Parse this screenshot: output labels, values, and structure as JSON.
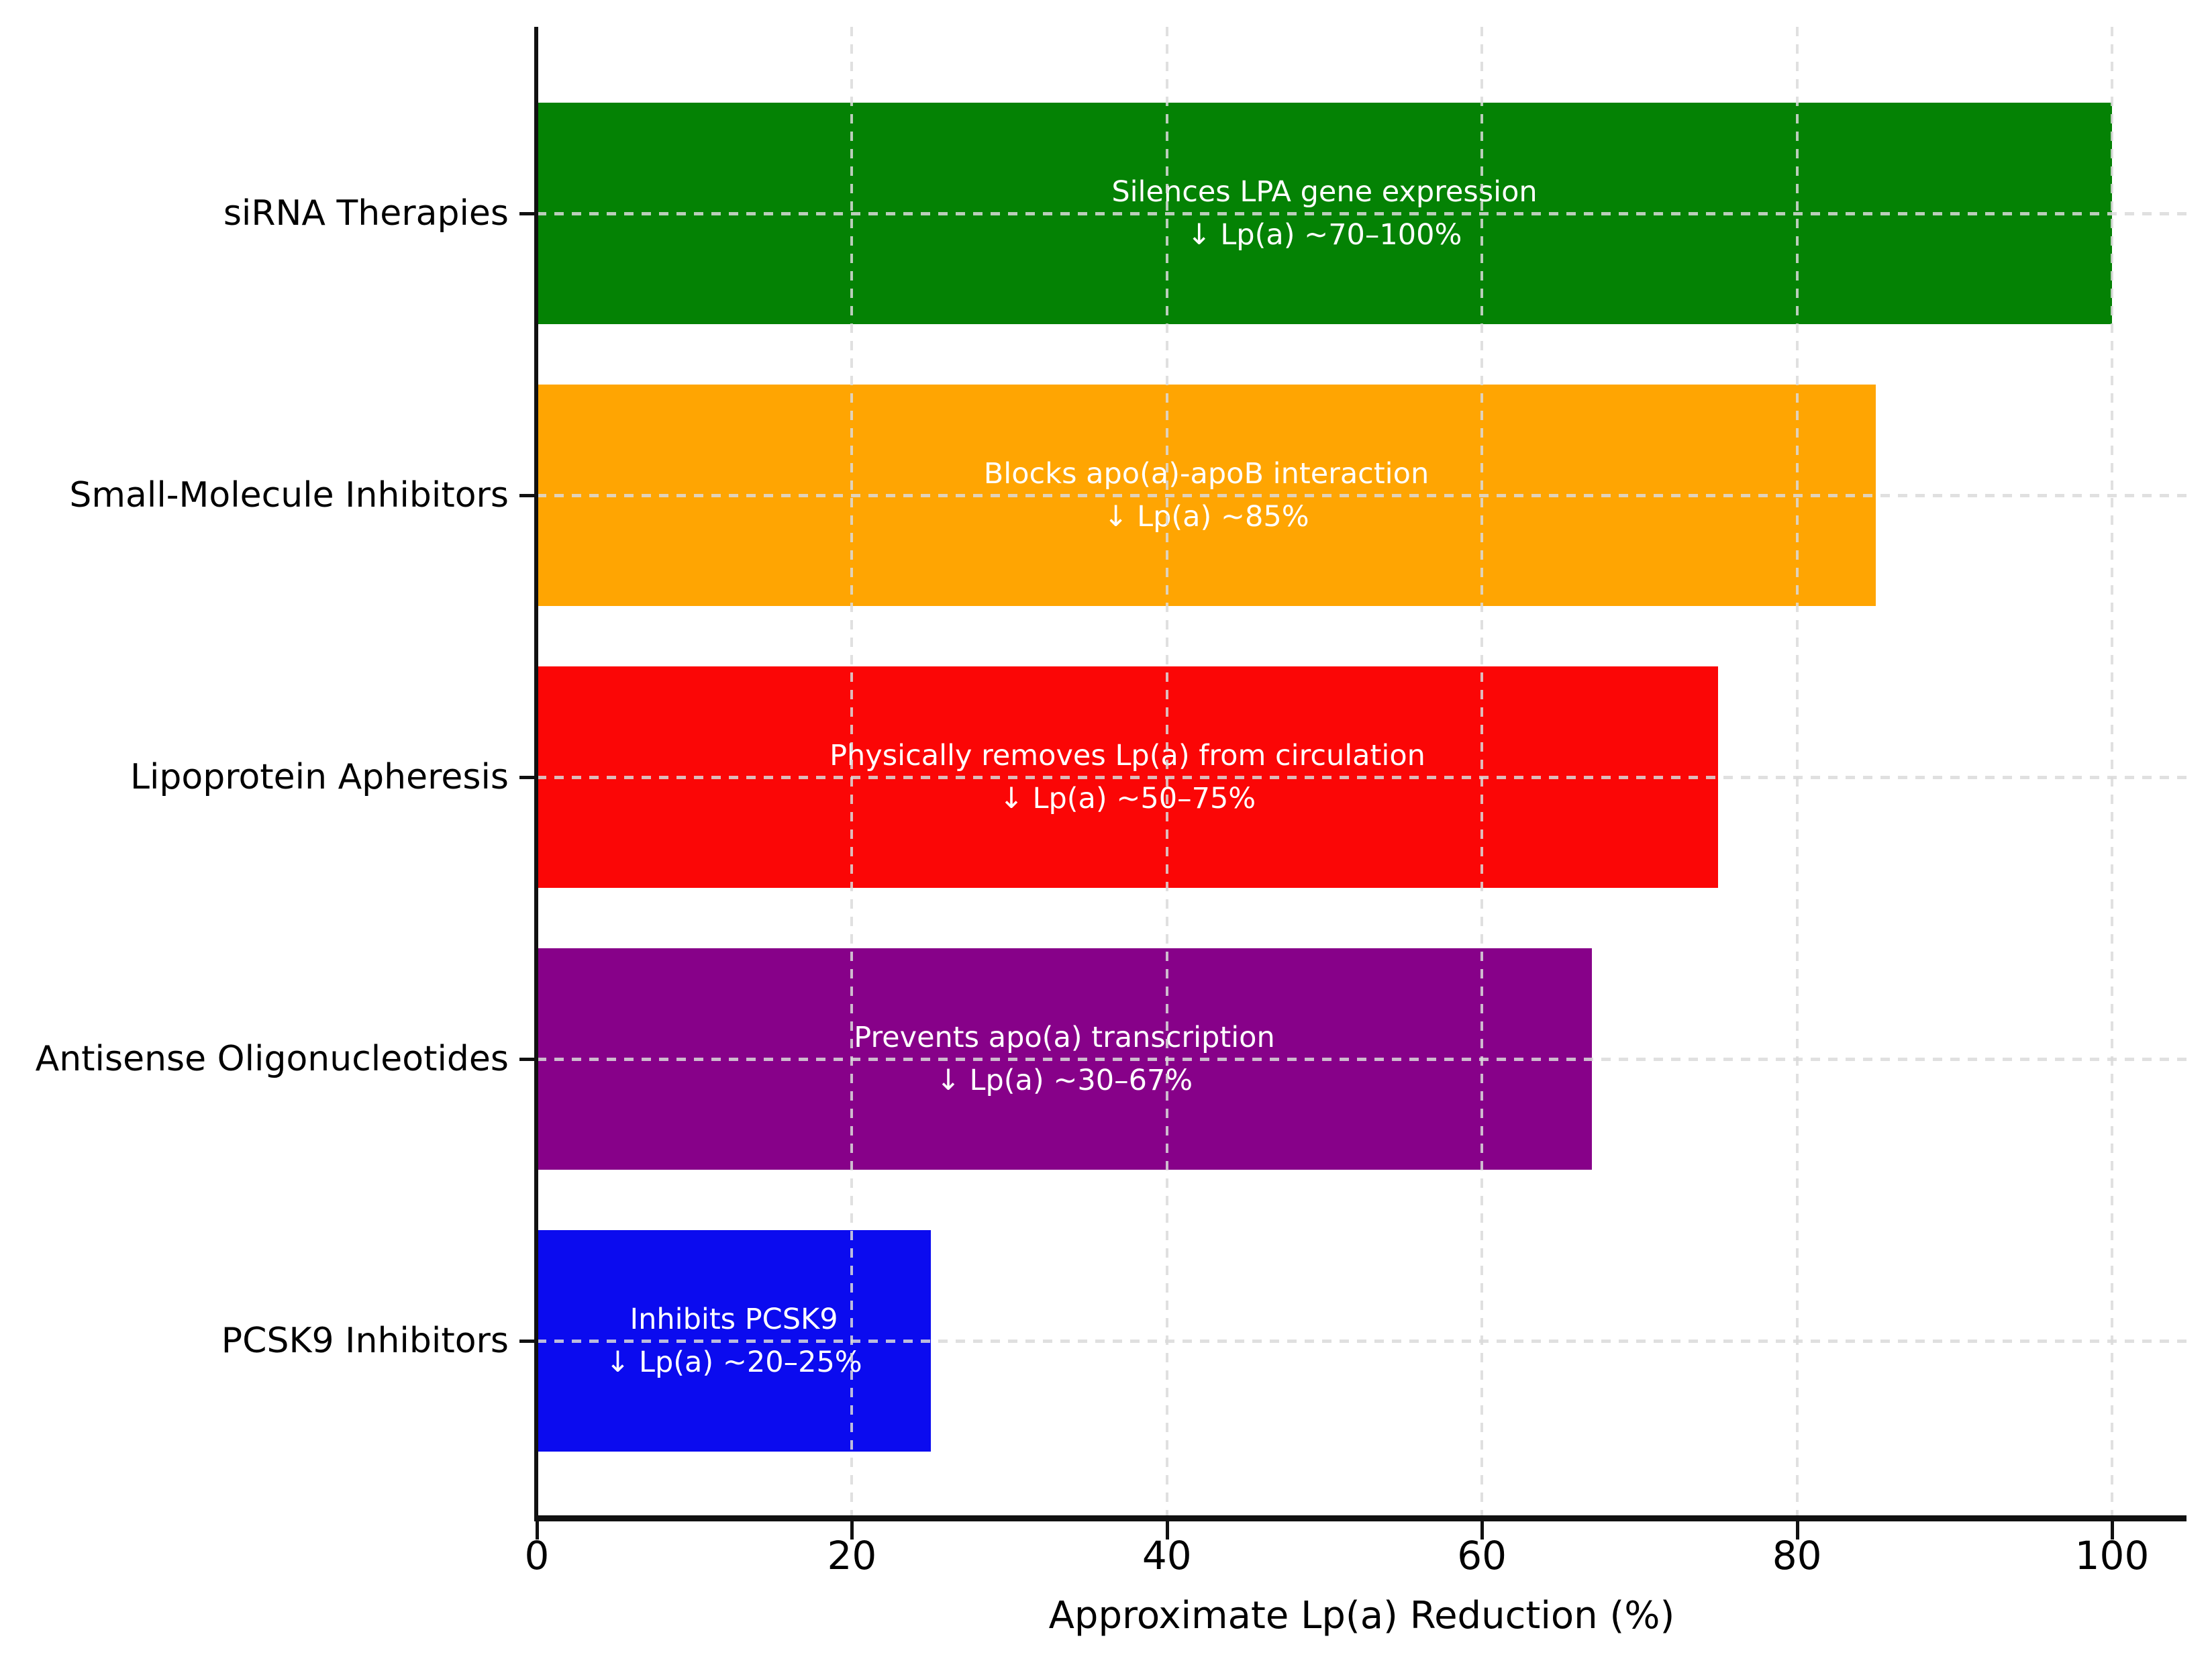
{
  "chart_data": {
    "type": "bar",
    "orientation": "horizontal",
    "xlabel": "Approximate Lp(a) Reduction (%)",
    "x_ticks": [
      0,
      20,
      40,
      60,
      80,
      100
    ],
    "xlim": [
      0,
      105
    ],
    "grid": "dashed",
    "legend_position": "none",
    "categories": [
      "siRNA Therapies",
      "Small-Molecule Inhibitors",
      "Lipoprotein Apheresis",
      "Antisense Oligonucleotides",
      "PCSK9 Inhibitors"
    ],
    "values": [
      100,
      85,
      75,
      67,
      25
    ],
    "bars": [
      {
        "category": "siRNA Therapies",
        "value": 100,
        "color": "#048204",
        "annotation_line1": "Silences LPA gene expression",
        "annotation_line2": "↓ Lp(a) ~70–100%"
      },
      {
        "category": "Small-Molecule Inhibitors",
        "value": 85,
        "color": "#FFA502",
        "annotation_line1": "Blocks apo(a)-apoB interaction",
        "annotation_line2": "↓ Lp(a) ~85%"
      },
      {
        "category": "Lipoprotein Apheresis",
        "value": 75,
        "color": "#FB0606",
        "annotation_line1": "Physically removes Lp(a) from circulation",
        "annotation_line2": "↓ Lp(a) ~50–75%"
      },
      {
        "category": "Antisense Oligonucleotides",
        "value": 67,
        "color": "#870189",
        "annotation_line1": "Prevents apo(a) transcription",
        "annotation_line2": "↓ Lp(a) ~30–67%"
      },
      {
        "category": "PCSK9 Inhibitors",
        "value": 25,
        "color": "#0B0BEF",
        "annotation_line1": "Inhibits PCSK9",
        "annotation_line2": "↓ Lp(a) ~20–25%"
      }
    ],
    "colors": {
      "annotation_text": "#FFFFFF",
      "axis": "#111111",
      "background": "#FFFFFF"
    }
  }
}
